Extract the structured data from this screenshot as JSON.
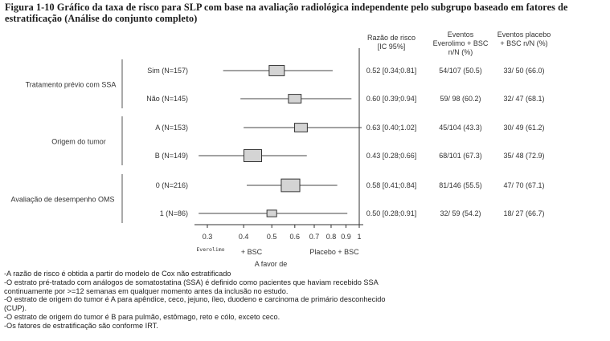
{
  "title": "Figura 1-10 Gráfico da taxa de risco para SLP com base na avaliação radiológica independente pelo subgrupo baseado em fatores de estratificação (Análise do conjunto completo)",
  "chart_data": {
    "type": "forest",
    "x_scale": "log",
    "xlim": [
      0.3,
      1
    ],
    "x_ticks": [
      "0.3",
      "0.4",
      "0.5",
      "0.6",
      "0.7",
      "0.8",
      "0.9",
      "1"
    ],
    "x_tick_values": [
      0.3,
      0.4,
      0.5,
      0.6,
      0.7,
      0.8,
      0.9,
      1.0
    ],
    "reference_line": 1,
    "favor_left": "Everolimo",
    "favor_left_sub": "+ BSC",
    "favor_right": "Placebo + BSC",
    "favor_caption": "A favor de",
    "columns": {
      "hr": "Razão de risco [IC 95%]",
      "hr_lines": [
        "Razão de risco",
        "[IC 95%]"
      ],
      "evero": "Eventos Everolimo + BSC n/N (%)",
      "evero_lines": [
        "Eventos",
        "Everolimo + BSC",
        "n/N (%)"
      ],
      "placebo": "Eventos placebo + BSC n/N (%)",
      "placebo_lines": [
        "Eventos placebo",
        "+ BSC n/N (%)"
      ]
    },
    "groups": [
      {
        "name": "Tratamento prévio com SSA",
        "rows": [
          0,
          1
        ]
      },
      {
        "name": "Origem do tumor",
        "rows": [
          2,
          3
        ]
      },
      {
        "name": "Avaliação de desempenho OMS",
        "rows": [
          4,
          5
        ]
      }
    ],
    "rows": [
      {
        "label": "Sim (N=157)",
        "hr": 0.52,
        "lo": 0.34,
        "hi": 0.81,
        "hr_text": "0.52 [0.34;0.81]",
        "evero": "54/107 (50.5)",
        "placebo": "33/ 50 (66.0)"
      },
      {
        "label": "Não (N=145)",
        "hr": 0.6,
        "lo": 0.39,
        "hi": 0.94,
        "hr_text": "0.60 [0.39;0.94]",
        "evero": "59/ 98 (60.2)",
        "placebo": "32/ 47 (68.1)"
      },
      {
        "label": "A (N=153)",
        "hr": 0.63,
        "lo": 0.4,
        "hi": 1.02,
        "hr_text": "0.63 [0.40;1.02]",
        "evero": "45/104 (43.3)",
        "placebo": "30/ 49 (61.2)"
      },
      {
        "label": "B (N=149)",
        "hr": 0.43,
        "lo": 0.28,
        "hi": 0.66,
        "hr_text": "0.43 [0.28;0.66]",
        "evero": "68/101 (67.3)",
        "placebo": "35/ 48 (72.9)"
      },
      {
        "label": "0 (N=216)",
        "hr": 0.58,
        "lo": 0.41,
        "hi": 0.84,
        "hr_text": "0.58 [0.41;0.84]",
        "evero": "81/146 (55.5)",
        "placebo": "47/ 70 (67.1)"
      },
      {
        "label": "1 (N=86)",
        "hr": 0.5,
        "lo": 0.28,
        "hi": 0.91,
        "hr_text": "0.50 [0.28;0.91]",
        "evero": "32/ 59 (54.2)",
        "placebo": "18/ 27 (66.7)"
      }
    ],
    "box_weights": [
      0.86,
      0.72,
      0.72,
      1.0,
      1.05,
      0.55
    ]
  },
  "notes": [
    "-A razão de risco é obtida a partir do modelo de Cox não estratificado",
    "-O estrato pré-tratado com análogos de somatostatina (SSA) é definido como pacientes que haviam recebido SSA",
    "continuamente por >=12 semanas em qualquer momento antes da inclusão no estudo.",
    "-O estrato de origem do tumor é A para apêndice, ceco, jejuno, íleo, duodeno e carcinoma de primário desconhecido",
    "(CUP).",
    "-O estrato de origem do tumor é B para pulmão, estômago, reto e cólo, exceto ceco.",
    "-Os fatores de estratificação são conforme IRT."
  ]
}
